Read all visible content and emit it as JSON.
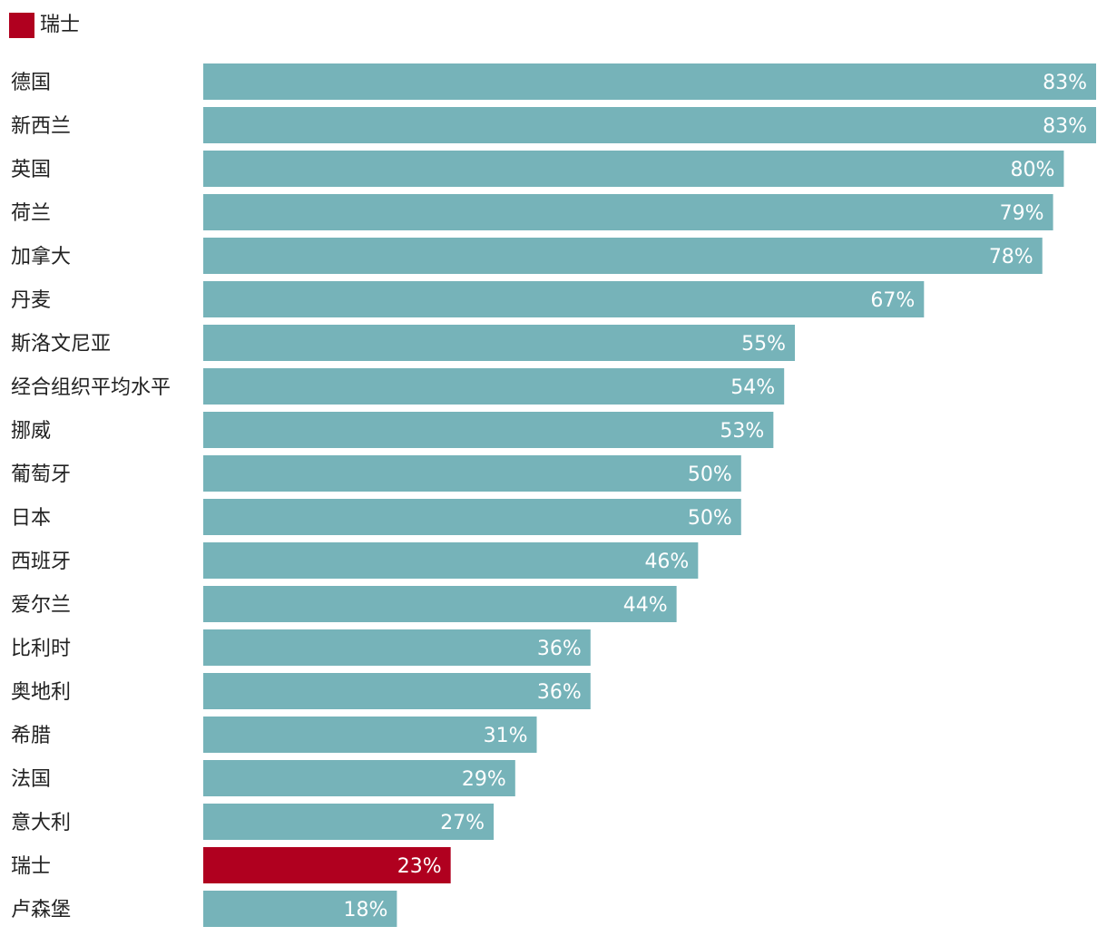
{
  "legend": {
    "label": "瑞士",
    "color": "#b0001f"
  },
  "colors": {
    "default_bar": "#76b3b9",
    "highlight_bar": "#b0001f"
  },
  "chart_data": {
    "type": "bar",
    "orientation": "horizontal",
    "value_suffix": "%",
    "categories": [
      "德国",
      "新西兰",
      "英国",
      "荷兰",
      "加拿大",
      "丹麦",
      "斯洛文尼亚",
      "经合组织平均水平",
      "挪威",
      "葡萄牙",
      "日本",
      "西班牙",
      "爱尔兰",
      "比利时",
      "奥地利",
      "希腊",
      "法国",
      "意大利",
      "瑞士",
      "卢森堡"
    ],
    "values": [
      83,
      83,
      80,
      79,
      78,
      67,
      55,
      54,
      53,
      50,
      50,
      46,
      44,
      36,
      36,
      31,
      29,
      27,
      23,
      18
    ],
    "highlight": "瑞士",
    "xlim": [
      0,
      83
    ]
  }
}
